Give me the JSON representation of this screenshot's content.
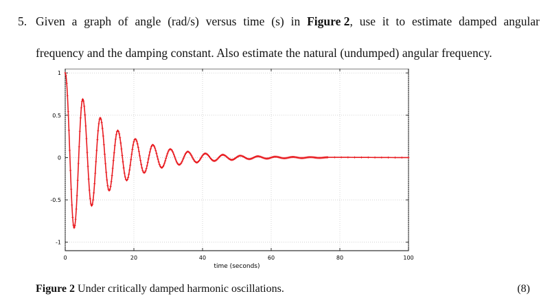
{
  "question": {
    "number": "5.",
    "words": [
      "Given",
      "a",
      "graph",
      "of",
      "angle",
      "(rad/s)",
      "versus",
      "time",
      "(s)",
      "in"
    ],
    "figure_ref": "Figure 2",
    "words_after": [
      ",",
      "use",
      "it",
      "to",
      "estimate",
      "damped",
      "angular"
    ],
    "line2": "frequency and the damping constant. Also estimate the natural (undumped) angular frequency."
  },
  "caption": {
    "label": "Figure 2",
    "text": " Under critically damped harmonic oscillations.",
    "marks": "(8)"
  },
  "chart_data": {
    "type": "line",
    "title": "",
    "xlabel": "time (seconds)",
    "ylabel": "",
    "xlim": [
      0,
      100
    ],
    "ylim": [
      -1.1,
      1.05
    ],
    "xticks": [
      0,
      20,
      40,
      60,
      80,
      100
    ],
    "yticks": [
      1,
      0.5,
      0,
      -0.5,
      -1
    ],
    "grid": true,
    "series": [
      {
        "color": "#e8191e",
        "marker": "plus",
        "x": [
          0,
          2.6,
          5.1,
          7.7,
          10.2,
          12.8,
          15.3,
          17.9,
          20.4,
          23.0,
          25.5,
          28.1,
          30.6,
          33.2,
          35.7,
          38.3,
          40.8,
          43.4,
          45.9,
          48.5,
          51.0,
          53.6,
          56.1,
          58.7,
          61.2,
          63.8,
          66.3,
          68.9,
          71.4,
          74.0,
          76.5,
          100
        ],
        "y": [
          1.0,
          -0.83,
          0.69,
          -0.57,
          0.47,
          -0.39,
          0.32,
          -0.27,
          0.22,
          -0.18,
          0.15,
          -0.12,
          0.1,
          -0.085,
          0.07,
          -0.058,
          0.048,
          -0.04,
          0.033,
          -0.027,
          0.022,
          -0.018,
          0.015,
          -0.012,
          0.01,
          -0.008,
          0.007,
          -0.006,
          0.005,
          -0.004,
          0.003,
          0.0
        ]
      }
    ]
  }
}
